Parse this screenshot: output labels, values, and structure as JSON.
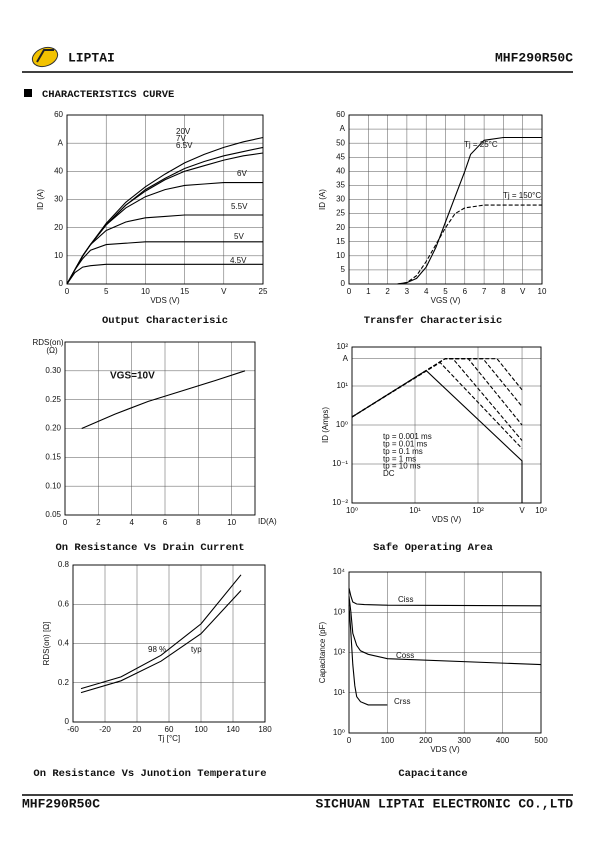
{
  "header": {
    "brand": "LIPTAI",
    "part": "MHF290R50C"
  },
  "section": "CHARACTERISTICS CURVE",
  "footer": {
    "part": "MHF290R50C",
    "company": "SICHUAN LIPTAI ELECTRONIC CO.,LTD"
  },
  "chart_data": [
    {
      "type": "line",
      "title": "Output Characterisic",
      "xlabel": "VDS (V)",
      "ylabel": "ID (A)",
      "grid": true,
      "xlim": [
        0,
        25
      ],
      "ylim": [
        0,
        60
      ],
      "xticks": [
        0,
        5,
        10,
        15,
        {
          "value": 20,
          "label": "V"
        },
        25
      ],
      "yticks": [
        0,
        10,
        20,
        30,
        40,
        {
          "value": 50,
          "label": "A"
        },
        60
      ],
      "series": [
        {
          "name": "20V",
          "color": "#000",
          "x": [
            0,
            1,
            2,
            3,
            5,
            7.5,
            10,
            12.5,
            15,
            17.5,
            20,
            22.5,
            25
          ],
          "values": [
            0,
            5,
            10,
            14,
            21.5,
            29,
            34.5,
            39,
            43,
            46,
            48.5,
            50.5,
            52
          ]
        },
        {
          "name": "7V",
          "color": "#000",
          "x": [
            0,
            1,
            2,
            3,
            5,
            7.5,
            10,
            12.5,
            15,
            17.5,
            20,
            22.5,
            25
          ],
          "values": [
            0,
            5,
            10,
            14,
            21,
            28,
            33.5,
            37.5,
            41,
            43.5,
            45.5,
            47,
            48.5
          ]
        },
        {
          "name": "6.5V",
          "color": "#000",
          "x": [
            0,
            1,
            2,
            3,
            5,
            7.5,
            10,
            12.5,
            15,
            17.5,
            20,
            22.5,
            25
          ],
          "values": [
            0,
            5,
            10,
            14,
            21,
            28,
            33,
            37,
            40,
            42,
            44,
            45.5,
            46.5
          ]
        },
        {
          "name": "6V",
          "color": "#000",
          "x": [
            0,
            1,
            2,
            3,
            5,
            7.5,
            10,
            12.5,
            15,
            17.5,
            20,
            22.5,
            25
          ],
          "values": [
            0,
            5,
            10,
            14,
            21,
            27,
            31,
            33.5,
            35,
            35.5,
            36,
            36,
            36
          ]
        },
        {
          "name": "5.5V",
          "color": "#000",
          "x": [
            0,
            1,
            2,
            3,
            5,
            7.5,
            10,
            12.5,
            15,
            17.5,
            20,
            22.5,
            25
          ],
          "values": [
            0,
            5,
            10,
            14,
            19,
            22,
            23.5,
            24,
            24.5,
            24.5,
            24.5,
            24.5,
            24.5
          ]
        },
        {
          "name": "5V",
          "color": "#000",
          "x": [
            0,
            1,
            2,
            3,
            5,
            7.5,
            10,
            12.5,
            15,
            17.5,
            20,
            22.5,
            25
          ],
          "values": [
            0,
            5,
            9,
            12,
            14,
            14.5,
            15,
            15,
            15,
            15,
            15,
            15,
            15
          ]
        },
        {
          "name": "4.5V",
          "color": "#000",
          "x": [
            0,
            1,
            2,
            3,
            5,
            7.5,
            10,
            12.5,
            15,
            17.5,
            20,
            22.5,
            25
          ],
          "values": [
            0,
            4,
            6,
            6.5,
            7,
            7,
            7,
            7,
            7,
            7,
            7,
            7,
            7
          ]
        }
      ]
    },
    {
      "type": "line",
      "title": "Transfer Characterisic",
      "xlabel": "VGS (V)",
      "ylabel": "ID (A)",
      "grid": true,
      "xlim": [
        0,
        10
      ],
      "ylim": [
        0,
        60
      ],
      "xticks": [
        0,
        1,
        2,
        3,
        4,
        5,
        6,
        7,
        8,
        {
          "value": 9,
          "label": "V"
        },
        10
      ],
      "yticks": [
        0,
        5,
        10,
        15,
        20,
        25,
        30,
        35,
        40,
        45,
        50,
        {
          "value": 55,
          "label": "A"
        },
        60
      ],
      "series": [
        {
          "name": "Tj = 25°C",
          "color": "#000",
          "x": [
            2.5,
            3,
            3.5,
            4,
            4.5,
            5,
            5.5,
            6,
            6.3,
            7,
            8,
            10
          ],
          "values": [
            0,
            0.5,
            2,
            6,
            13,
            22,
            31,
            40,
            46,
            51,
            52,
            52
          ]
        },
        {
          "name": "Tj = 150°C",
          "color": "#000",
          "dash": true,
          "x": [
            2.5,
            3,
            3.5,
            4,
            4.5,
            5,
            5.5,
            6,
            6.5,
            7,
            10
          ],
          "values": [
            0,
            0.5,
            3,
            8,
            14,
            20,
            25,
            27,
            27.5,
            28,
            28
          ]
        }
      ]
    },
    {
      "type": "line",
      "title": "On Resistance Vs Drain Current",
      "xlabel": "ID(A)",
      "ylabel": "RDS(on)",
      "yunit": "(Ω)",
      "annotation": "VGS=10V",
      "grid": true,
      "xlim": [
        0,
        11.4
      ],
      "ylim": [
        0.05,
        0.35
      ],
      "xticks": [
        0,
        2,
        4,
        6,
        8,
        10
      ],
      "yticks": [
        0.05,
        {
          "value": 0.1,
          "label": "0.10"
        },
        0.15,
        {
          "value": 0.2,
          "label": "0.20"
        },
        0.25,
        {
          "value": 0.3,
          "label": "0.30"
        }
      ],
      "series": [
        {
          "color": "#000",
          "x": [
            1,
            3,
            5,
            7,
            9,
            10.8
          ],
          "values": [
            0.2,
            0.225,
            0.247,
            0.265,
            0.283,
            0.3
          ]
        }
      ]
    },
    {
      "type": "line",
      "title": "Safe Operating Area",
      "xlabel": "VDS (V)",
      "ylabel": "ID (Amps)",
      "grid": true,
      "xlog": true,
      "ylog": true,
      "xlim": [
        1,
        1000
      ],
      "ylim": [
        0.01,
        100
      ],
      "xticks": [
        {
          "value": 1,
          "label": "10⁰"
        },
        {
          "value": 10,
          "label": "10¹"
        },
        {
          "value": 100,
          "label": "10²"
        },
        {
          "value": 500,
          "label": "V"
        },
        {
          "value": 1000,
          "label": "10³"
        }
      ],
      "yticks": [
        {
          "value": 0.01,
          "label": "10⁻²"
        },
        {
          "value": 0.1,
          "label": "10⁻¹"
        },
        {
          "value": 1,
          "label": "10⁰"
        },
        {
          "value": 10,
          "label": "10¹"
        },
        {
          "value": 50,
          "label": "A"
        },
        {
          "value": 100,
          "label": "10²"
        }
      ],
      "series": [
        {
          "name": "tp = 0.001 ms",
          "color": "#000",
          "dash": true,
          "x": [
            1,
            30,
            200,
            500
          ],
          "values": [
            1.6,
            50,
            50,
            8
          ]
        },
        {
          "name": "tp = 0.01 ms",
          "color": "#000",
          "dash": true,
          "x": [
            1,
            30,
            120,
            500
          ],
          "values": [
            1.6,
            50,
            50,
            3
          ]
        },
        {
          "name": "tp = 0.1 ms",
          "color": "#000",
          "dash": true,
          "x": [
            1,
            30,
            70,
            500
          ],
          "values": [
            1.6,
            50,
            50,
            1
          ]
        },
        {
          "name": "tp = 1 ms",
          "color": "#000",
          "dash": true,
          "x": [
            1,
            30,
            40,
            500
          ],
          "values": [
            1.6,
            50,
            50,
            0.4
          ]
        },
        {
          "name": "tp = 10 ms",
          "color": "#000",
          "dash": true,
          "x": [
            1,
            25,
            500
          ],
          "values": [
            1.6,
            40,
            0.25
          ]
        },
        {
          "name": "DC",
          "color": "#000",
          "x": [
            1,
            15,
            500,
            500
          ],
          "values": [
            1.6,
            25,
            0.12,
            0.01
          ]
        }
      ]
    },
    {
      "type": "line",
      "title": "On Resistance Vs Junotion Temperature",
      "xlabel": "Tj [°C]",
      "ylabel": "RDS(on) [Ω]",
      "grid": true,
      "xlim": [
        -60,
        180
      ],
      "ylim": [
        0,
        0.8
      ],
      "xticks": [
        -60,
        -20,
        20,
        60,
        100,
        140,
        180
      ],
      "yticks": [
        0,
        0.2,
        0.4,
        0.6,
        0.8
      ],
      "series": [
        {
          "name": "98 %",
          "color": "#000",
          "x": [
            -50,
            0,
            50,
            100,
            150
          ],
          "values": [
            0.17,
            0.23,
            0.34,
            0.5,
            0.75
          ]
        },
        {
          "name": "typ",
          "color": "#000",
          "x": [
            -50,
            0,
            50,
            100,
            150
          ],
          "values": [
            0.15,
            0.21,
            0.31,
            0.45,
            0.67
          ]
        }
      ]
    },
    {
      "type": "line",
      "title": "Capacitance",
      "xlabel": "VDS (V)",
      "ylabel": "Capacitance (pF)",
      "grid": true,
      "ylog": true,
      "xlim": [
        0,
        500
      ],
      "ylim": [
        1,
        10000
      ],
      "xticks": [
        0,
        100,
        200,
        300,
        400,
        500
      ],
      "yticks": [
        {
          "value": 1,
          "label": "10⁰"
        },
        {
          "value": 10,
          "label": "10¹"
        },
        {
          "value": 100,
          "label": "10²"
        },
        {
          "value": 1000,
          "label": "10³"
        },
        {
          "value": 10000,
          "label": "10⁴"
        }
      ],
      "series": [
        {
          "name": "Ciss",
          "color": "#000",
          "x": [
            0,
            5,
            10,
            20,
            40,
            100,
            500
          ],
          "values": [
            4000,
            2500,
            1800,
            1600,
            1550,
            1500,
            1450
          ]
        },
        {
          "name": "Coss",
          "color": "#000",
          "x": [
            0,
            5,
            10,
            20,
            30,
            50,
            100,
            500
          ],
          "values": [
            2500,
            1000,
            300,
            150,
            110,
            90,
            70,
            50
          ]
        },
        {
          "name": "Crss",
          "color": "#000",
          "x": [
            0,
            5,
            10,
            15,
            20,
            30,
            50,
            100
          ],
          "values": [
            1500,
            300,
            50,
            15,
            8,
            6,
            5,
            5
          ]
        }
      ]
    }
  ]
}
